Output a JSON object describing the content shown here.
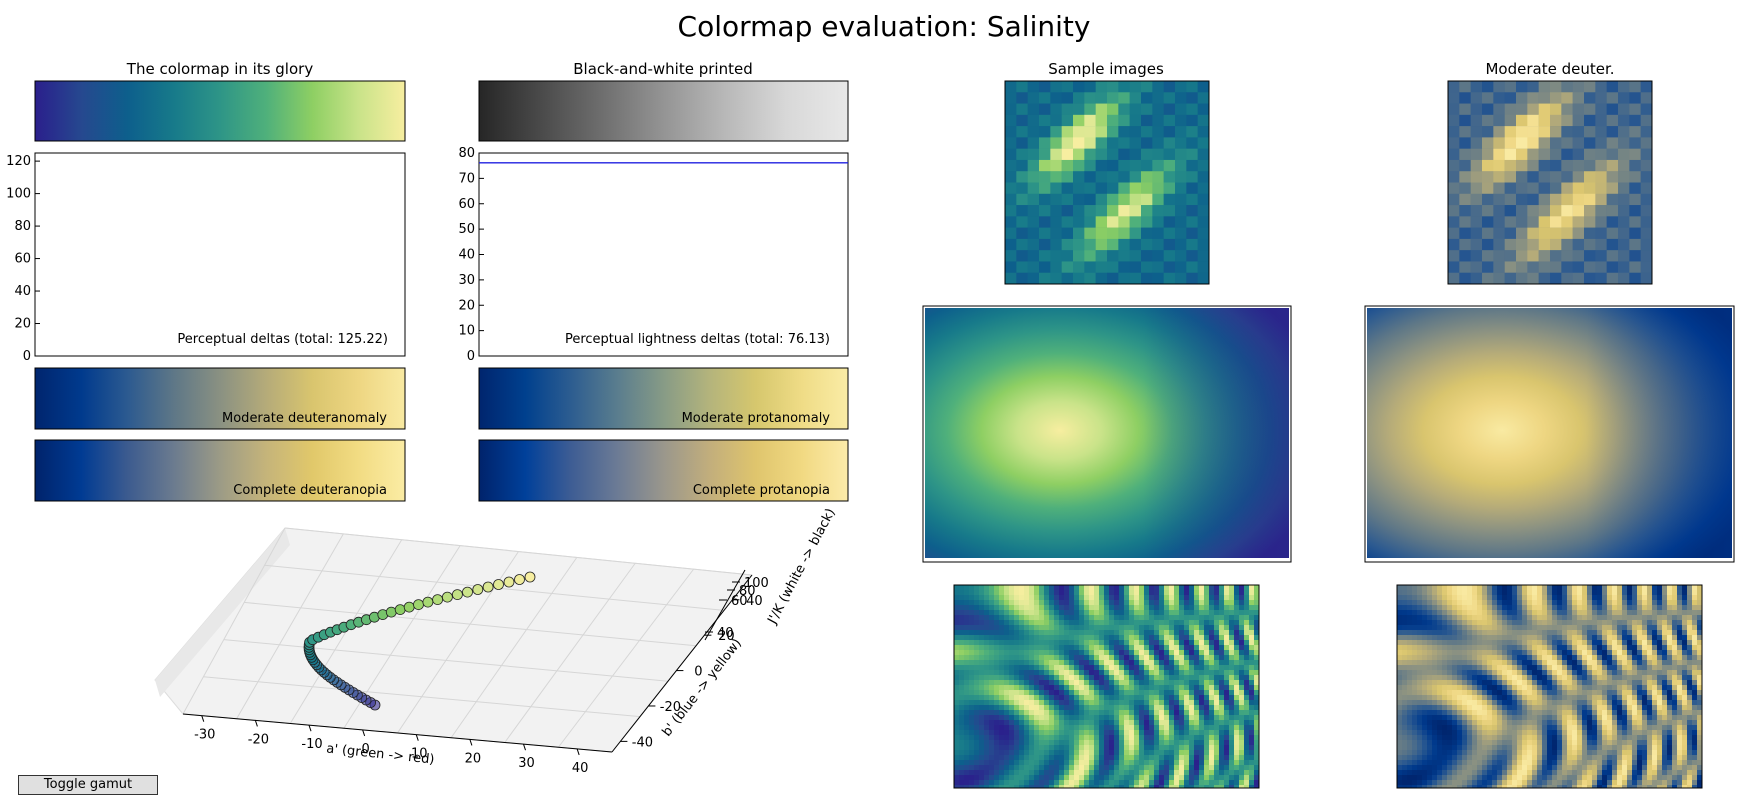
{
  "title": "Colormap evaluation: Salinity",
  "colors": {
    "salinity_stops": [
      "#2a1f8c",
      "#26488f",
      "#0d5f8c",
      "#177a8a",
      "#2e9587",
      "#4fb07b",
      "#8ecf63",
      "#c9e389",
      "#f7eea0"
    ],
    "gray_stops": [
      "#262626",
      "#4a4a4a",
      "#6e6e6e",
      "#949494",
      "#b8b8b8",
      "#d8d8d8",
      "#e8e8e8"
    ],
    "deuter_stops": [
      "#00256e",
      "#003a8d",
      "#2c5a90",
      "#5e7787",
      "#8a9182",
      "#b5ab79",
      "#d9c56e",
      "#eed682",
      "#f9eaa2"
    ],
    "deuter_full_stops": [
      "#00236b",
      "#003b93",
      "#3c5b8f",
      "#6b7b8f",
      "#9c9b86",
      "#c5b47a",
      "#e1c86a",
      "#f2dc83",
      "#fbeca4"
    ],
    "protan_stops": [
      "#00256e",
      "#00408e",
      "#2d5d90",
      "#5a7d8e",
      "#879b86",
      "#b4b47c",
      "#d6c76d",
      "#efdc86",
      "#faeca6"
    ],
    "protan_full_stops": [
      "#00236b",
      "#00409a",
      "#3e5d94",
      "#6c7b95",
      "#9a978c",
      "#c2ae7c",
      "#dfc56d",
      "#f1d982",
      "#fcebaa"
    ],
    "trace_line": "#2020e0"
  },
  "panels": {
    "glory": {
      "title": "The colormap in its glory"
    },
    "bw": {
      "title": "Black-and-white printed"
    },
    "deuter_moderate": {
      "label": "Moderate deuteranomaly"
    },
    "deuter_complete": {
      "label": "Complete deuteranopia"
    },
    "protan_moderate": {
      "label": "Moderate protanomaly"
    },
    "protan_complete": {
      "label": "Complete protanopia"
    },
    "samples": {
      "title": "Sample images"
    },
    "samples_deuter": {
      "title": "Moderate deuter."
    }
  },
  "chart_data": [
    {
      "type": "line",
      "name": "perceptual-deltas",
      "annotation": "Perceptual deltas (total: 125.22)",
      "ylim": [
        0,
        125
      ],
      "yticks": [
        "0",
        "20",
        "40",
        "60",
        "80",
        "100",
        "120"
      ],
      "values": []
    },
    {
      "type": "line",
      "name": "lightness-deltas",
      "annotation": "Perceptual lightness deltas (total: 76.13)",
      "ylim": [
        0,
        80
      ],
      "yticks": [
        "0",
        "10",
        "20",
        "30",
        "40",
        "50",
        "60",
        "70",
        "80"
      ],
      "values": [
        76.13,
        76.13
      ]
    },
    {
      "type": "scatter",
      "name": "gamut-3d",
      "xlabel": "a' (green -> red)",
      "ylabel": "b' (blue -> yellow)",
      "zlabel": "J'/K (white -> black)",
      "xticks": [
        "-30",
        "-20",
        "-10",
        "0",
        "10",
        "20",
        "30",
        "40"
      ],
      "yticks": [
        "-40",
        "-20",
        "0",
        "20",
        "40"
      ],
      "zticks": [
        "40",
        "60",
        "80",
        "100"
      ]
    }
  ],
  "button": {
    "label": "Toggle gamut"
  }
}
